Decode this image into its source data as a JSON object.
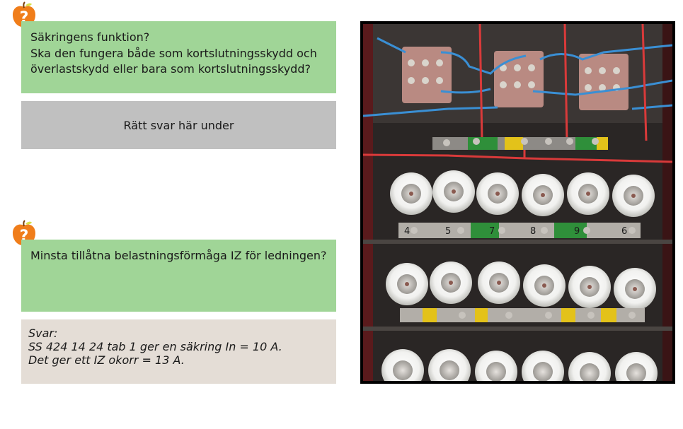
{
  "question1": {
    "icon": "question-apple-icon",
    "lines": [
      "Säkringens funktion?",
      "Ska den fungera både som kortslutningsskydd och",
      "överlastskydd eller bara som kortslutningsskydd?"
    ]
  },
  "answer1_placeholder": "Rätt svar här under",
  "question2": {
    "icon": "question-apple-icon",
    "text": "Minsta tillåtna belastningsförmåga IZ för ledningen?"
  },
  "answer2": {
    "lines": [
      "Svar:",
      "SS 424 14 24 tab 1 ger en säkring In = 10 A.",
      "Det ger ett IZ okorr = 13 A."
    ]
  },
  "photo": {
    "subject": "fuse-panel-photo",
    "rail_labels_row1": [
      "4",
      "5",
      "7",
      "8",
      "9",
      "6"
    ]
  },
  "colors": {
    "question_green": "#a0d597",
    "placeholder_gray": "#c0c0c0",
    "answer_beige": "#e4ddd6",
    "icon_orange": "#f07d1a"
  }
}
